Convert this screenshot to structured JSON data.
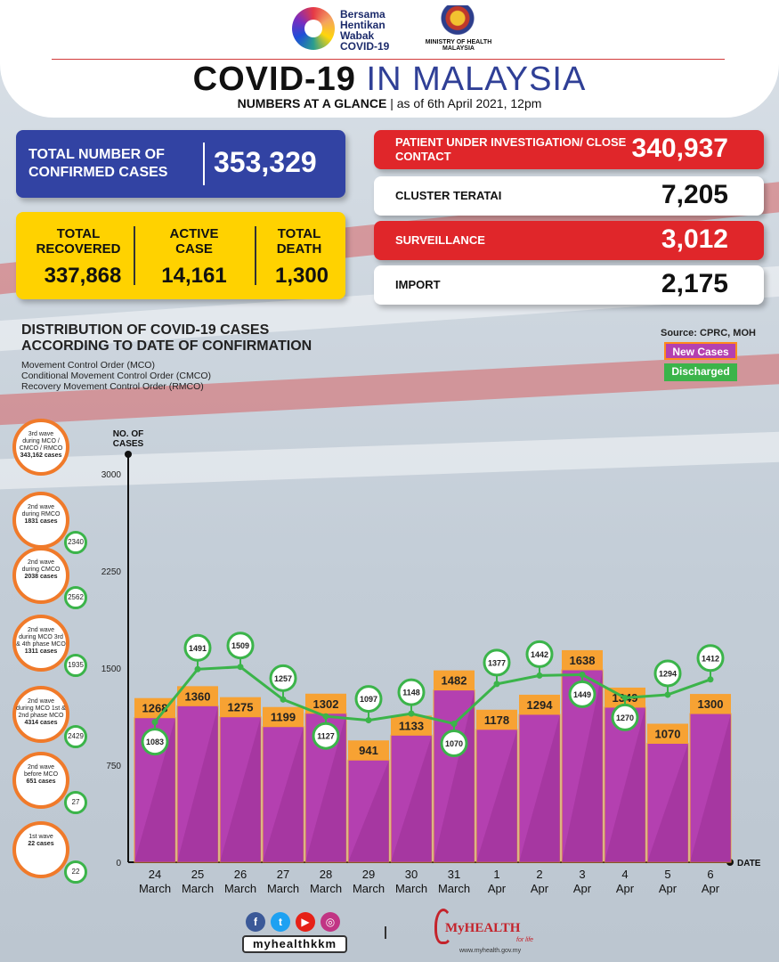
{
  "header": {
    "campaign_logo_text": [
      "Bersama",
      "Hentikan",
      "Wabak",
      "COVID-19"
    ],
    "ministry_text": "MINISTRY OF HEALTH MALAYSIA",
    "title_bold": "COVID-19",
    "title_light": "IN MALAYSIA",
    "subtitle_bold": "NUMBERS AT A GLANCE",
    "subtitle_rest": "as of 6th April 2021, 12pm"
  },
  "totals": {
    "confirmed_label": "TOTAL NUMBER OF CONFIRMED CASES",
    "confirmed_value": "353,329",
    "recovered_label": "TOTAL RECOVERED",
    "recovered_value": "337,868",
    "active_label": "ACTIVE CASE",
    "active_value": "14,161",
    "death_label": "TOTAL DEATH",
    "death_value": "1,300"
  },
  "side_stats": [
    {
      "label": "PATIENT UNDER INVESTIGATION/ CLOSE CONTACT",
      "value": "340,937",
      "style": "red"
    },
    {
      "label": "CLUSTER TERATAI",
      "value": "7,205",
      "style": "white"
    },
    {
      "label": "SURVEILLANCE",
      "value": "3,012",
      "style": "red"
    },
    {
      "label": "IMPORT",
      "value": "2,175",
      "style": "white"
    }
  ],
  "distribution": {
    "title_line1": "DISTRIBUTION OF COVID-19 CASES",
    "title_line2": "ACCORDING TO DATE OF CONFIRMATION",
    "notes": [
      "Movement Control Order (MCO)",
      "Conditional Movement Control Order (CMCO)",
      "Recovery Movement Control Order (RMCO)"
    ],
    "source": "Source: CPRC, MOH",
    "legend_new": "New Cases",
    "legend_discharged": "Discharged"
  },
  "waves": [
    {
      "lines": [
        "3rd wave",
        "during MCO /",
        "CMCO / RMCO"
      ],
      "count": "343,162",
      "unit": "cases",
      "discharged": ""
    },
    {
      "lines": [
        "2nd wave",
        "during RMCO"
      ],
      "count": "1831",
      "unit": "cases",
      "discharged": "2340"
    },
    {
      "lines": [
        "2nd wave",
        "during CMCO"
      ],
      "count": "2038",
      "unit": "cases",
      "discharged": "2562"
    },
    {
      "lines": [
        "2nd wave",
        "during MCO 3rd",
        "& 4th phase MCO"
      ],
      "count": "1311",
      "unit": "cases",
      "discharged": "1935"
    },
    {
      "lines": [
        "2nd wave",
        "during MCO 1st &",
        "2nd phase MCO"
      ],
      "count": "4314",
      "unit": "cases",
      "discharged": "2429"
    },
    {
      "lines": [
        "2nd wave",
        "before MCO"
      ],
      "count": "651",
      "unit": "cases",
      "discharged": "27"
    },
    {
      "lines": [
        "1st wave"
      ],
      "count": "22",
      "unit": "cases",
      "discharged": "22"
    }
  ],
  "chart_data": {
    "type": "bar",
    "ylabel": "NO. OF CASES",
    "xlabel": "DATE",
    "ylim": [
      0,
      3000
    ],
    "yticks": [
      0,
      750,
      1500,
      2250,
      3000
    ],
    "categories": [
      [
        "24",
        "March"
      ],
      [
        "25",
        "March"
      ],
      [
        "26",
        "March"
      ],
      [
        "27",
        "March"
      ],
      [
        "28",
        "March"
      ],
      [
        "29",
        "March"
      ],
      [
        "30",
        "March"
      ],
      [
        "31",
        "March"
      ],
      [
        "1",
        "Apr"
      ],
      [
        "2",
        "Apr"
      ],
      [
        "3",
        "Apr"
      ],
      [
        "4",
        "Apr"
      ],
      [
        "5",
        "Apr"
      ],
      [
        "6",
        "Apr"
      ]
    ],
    "series": [
      {
        "name": "New Cases",
        "type": "bar",
        "color": "#b440b0",
        "values": [
          1268,
          1360,
          1275,
          1199,
          1302,
          941,
          1133,
          1482,
          1178,
          1294,
          1638,
          1349,
          1070,
          1300
        ]
      },
      {
        "name": "Discharged",
        "type": "line",
        "color": "#3bb44a",
        "values": [
          1083,
          1491,
          1509,
          1257,
          1127,
          1097,
          1148,
          1070,
          1377,
          1442,
          1449,
          1270,
          1294,
          1412
        ]
      }
    ],
    "grid": false,
    "legend": "top-right"
  },
  "footer": {
    "social_handle": "myhealthkkm",
    "brand": "MyHEALTH",
    "brand_sub": "for life",
    "url": "www.myhealth.gov.my"
  },
  "colors": {
    "blue": "#3243a3",
    "yellow": "#ffd200",
    "red": "#e0262a",
    "bar": "#b440b0",
    "bar_label": "#f7a233",
    "line": "#3bb44a"
  }
}
